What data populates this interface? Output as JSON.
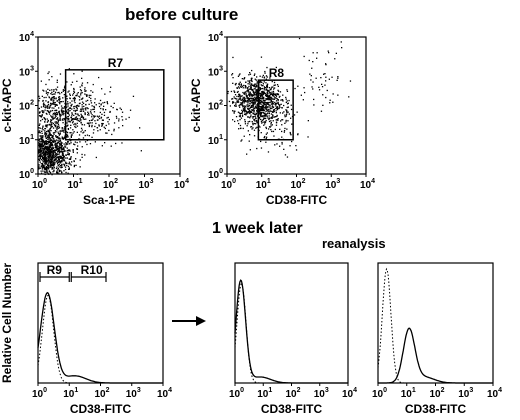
{
  "headings": {
    "top": "before culture",
    "bottom": "1 week later",
    "reanalysis": "reanalysis"
  },
  "chart_data": [
    {
      "type": "scatter",
      "xlabel": "Sca-1-PE",
      "ylabel": "c-kit-APC",
      "xscale": "log",
      "yscale": "log",
      "xlim": [
        1,
        10000
      ],
      "ylim": [
        1,
        10000
      ],
      "x_ticks": [
        "10",
        "10",
        "10",
        "10",
        "10"
      ],
      "x_tick_exponents": [
        "0",
        "1",
        "2",
        "3",
        "4"
      ],
      "y_ticks": [
        "10",
        "10",
        "10",
        "10",
        "10"
      ],
      "y_tick_exponents": [
        "0",
        "1",
        "2",
        "3",
        "4"
      ],
      "clusters": [
        {
          "center_x": 1.8,
          "center_y": 4,
          "spread_decades": 0.35,
          "approx_points": 1100
        },
        {
          "center_x": 3,
          "center_y": 60,
          "spread_decades": 0.45,
          "approx_points": 550
        },
        {
          "center_x": 30,
          "center_y": 60,
          "spread_decades": 0.5,
          "approx_points": 250
        }
      ],
      "gates": [
        {
          "name": "R7",
          "x": [
            6,
            3500
          ],
          "y": [
            10,
            1100
          ]
        }
      ]
    },
    {
      "type": "scatter",
      "xlabel": "CD38-FITC",
      "ylabel": "c-kit-APC",
      "xscale": "log",
      "yscale": "log",
      "xlim": [
        1,
        10000
      ],
      "ylim": [
        1,
        10000
      ],
      "x_ticks": [
        "10",
        "10",
        "10",
        "10",
        "10"
      ],
      "x_tick_exponents": [
        "0",
        "1",
        "2",
        "3",
        "4"
      ],
      "y_ticks": [
        "10",
        "10",
        "10",
        "10",
        "10"
      ],
      "y_tick_exponents": [
        "0",
        "1",
        "2",
        "3",
        "4"
      ],
      "clusters": [
        {
          "center_x": 7,
          "center_y": 150,
          "spread_decades": 0.35,
          "approx_points": 900
        },
        {
          "center_x": 20,
          "center_y": 25,
          "spread_decades": 0.45,
          "approx_points": 150
        },
        {
          "center_x": 400,
          "center_y": 800,
          "spread_decades": 0.5,
          "approx_points": 60
        }
      ],
      "gates": [
        {
          "name": "R8",
          "x": [
            8,
            80
          ],
          "y": [
            10,
            550
          ]
        }
      ]
    },
    {
      "type": "line",
      "xlabel": "CD38-FITC",
      "ylabel": "Relative Cell Number",
      "xscale": "log",
      "xlim": [
        1,
        10000
      ],
      "x_ticks": [
        "10",
        "10",
        "10",
        "10",
        "10"
      ],
      "x_tick_exponents": [
        "0",
        "1",
        "2",
        "3",
        "4"
      ],
      "series": [
        {
          "style": "solid",
          "peak_x": 2.0,
          "peak_height": 0.75,
          "width_decades": 0.22,
          "tail_height": 0.06,
          "tail_center": 15
        },
        {
          "style": "dotted",
          "peak_x": 2.1,
          "peak_height": 0.73,
          "width_decades": 0.18,
          "tail_height": 0.0,
          "tail_center": 15
        }
      ],
      "regions": [
        {
          "name": "R9",
          "x": [
            1,
            10
          ]
        },
        {
          "name": "R10",
          "x": [
            10,
            150
          ]
        }
      ]
    },
    {
      "type": "line",
      "xlabel": "CD38-FITC",
      "xscale": "log",
      "xlim": [
        1,
        10000
      ],
      "x_ticks": [
        "10",
        "10",
        "10",
        "10",
        "10"
      ],
      "x_tick_exponents": [
        "0",
        "1",
        "2",
        "3",
        "4"
      ],
      "series": [
        {
          "style": "solid",
          "peak_x": 1.6,
          "peak_height": 0.85,
          "width_decades": 0.17,
          "tail_height": 0.05,
          "tail_center": 8
        },
        {
          "style": "dotted",
          "peak_x": 1.7,
          "peak_height": 0.83,
          "width_decades": 0.16,
          "tail_height": 0.0,
          "tail_center": 8
        }
      ]
    },
    {
      "type": "line",
      "xlabel": "CD38-FITC",
      "xscale": "log",
      "xlim": [
        1,
        10000
      ],
      "x_ticks": [
        "10",
        "10",
        "10",
        "10",
        "10"
      ],
      "x_tick_exponents": [
        "0",
        "1",
        "2",
        "3",
        "4"
      ],
      "series": [
        {
          "style": "solid",
          "peak_x": 12,
          "peak_height": 0.44,
          "width_decades": 0.2,
          "tail_height": 0.05,
          "tail_center": 40
        },
        {
          "style": "dotted",
          "peak_x": 2.0,
          "peak_height": 0.95,
          "width_decades": 0.15,
          "tail_height": 0.0,
          "tail_center": 40
        }
      ]
    }
  ]
}
